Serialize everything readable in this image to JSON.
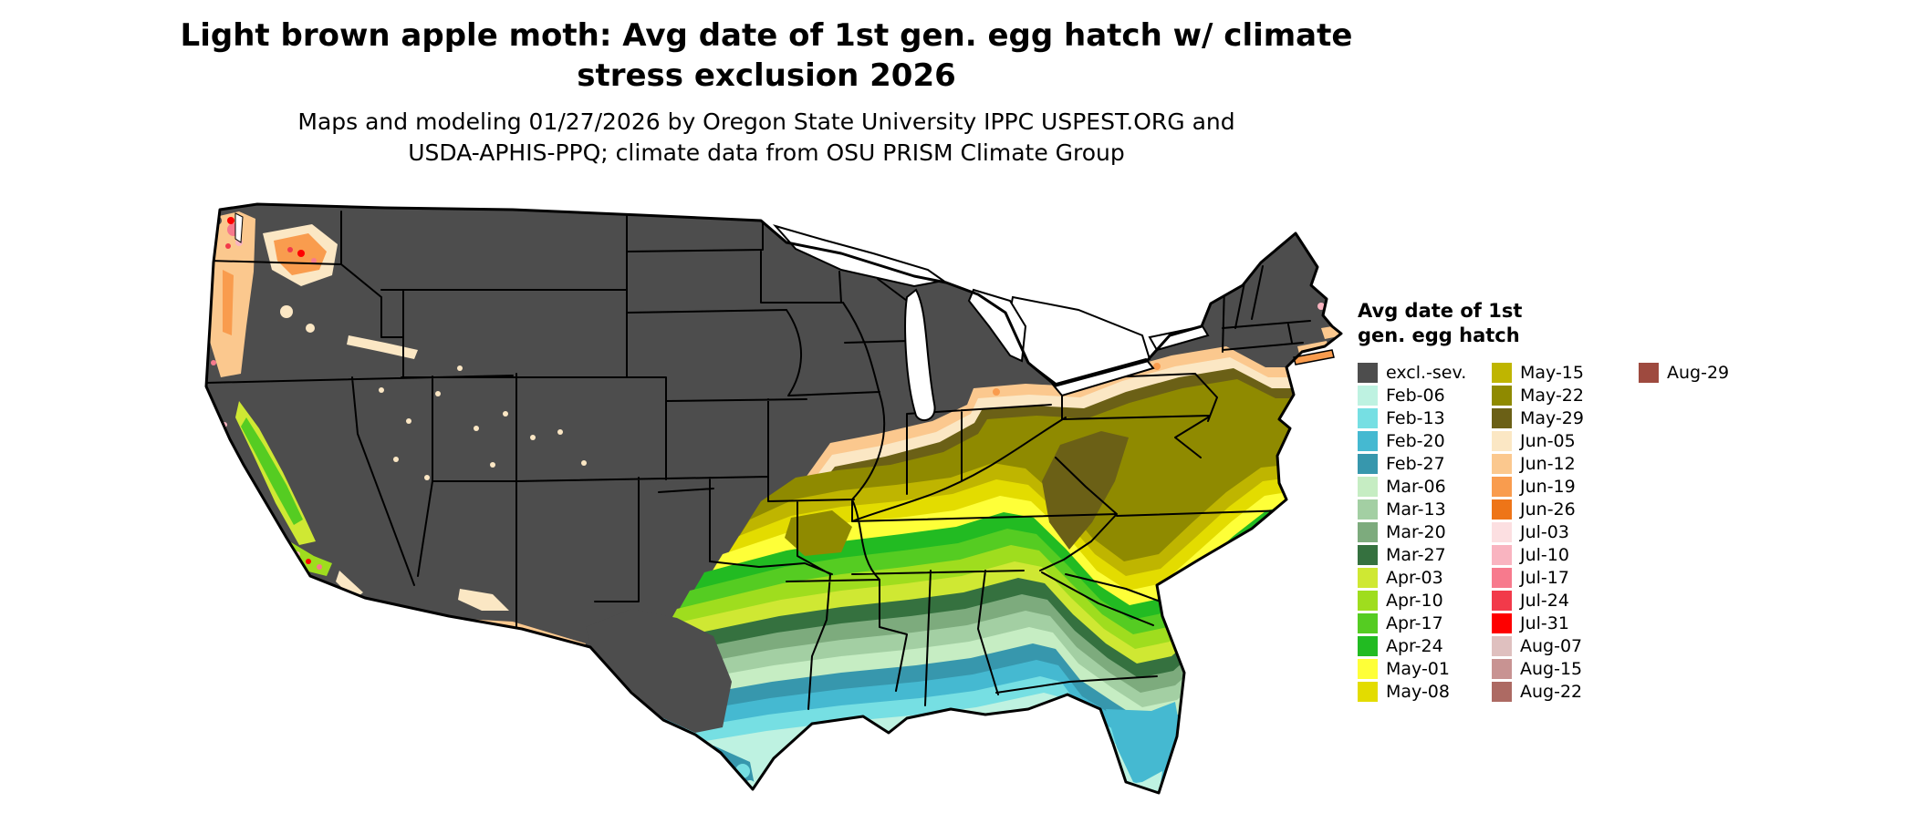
{
  "title": {
    "line1": "Light brown apple moth: Avg date of 1st gen. egg hatch w/ climate",
    "line2": "stress exclusion 2026"
  },
  "subtitle": {
    "line1": "Maps and modeling 01/27/2026 by Oregon State University IPPC USPEST.ORG and",
    "line2": "USDA-APHIS-PPQ; climate data from OSU PRISM Climate Group"
  },
  "legend": {
    "title_line1": "Avg date of 1st",
    "title_line2": "gen. egg hatch",
    "columns": [
      [
        {
          "label": "excl.-sev.",
          "color": "#4d4d4d"
        },
        {
          "label": "Feb-06",
          "color": "#bef2e1"
        },
        {
          "label": "Feb-13",
          "color": "#76dfe3"
        },
        {
          "label": "Feb-20",
          "color": "#45b9d1"
        },
        {
          "label": "Feb-27",
          "color": "#3797ad"
        },
        {
          "label": "Mar-06",
          "color": "#c6edc3"
        },
        {
          "label": "Mar-13",
          "color": "#a3cfa3"
        },
        {
          "label": "Mar-20",
          "color": "#7dab7d"
        },
        {
          "label": "Mar-27",
          "color": "#35713f"
        },
        {
          "label": "Apr-03",
          "color": "#cfe833"
        },
        {
          "label": "Apr-10",
          "color": "#9fdd1e"
        },
        {
          "label": "Apr-17",
          "color": "#55cc22"
        },
        {
          "label": "Apr-24",
          "color": "#22bb22"
        },
        {
          "label": "May-01",
          "color": "#feff38"
        },
        {
          "label": "May-08",
          "color": "#e3dc00"
        }
      ],
      [
        {
          "label": "May-15",
          "color": "#bfb500"
        },
        {
          "label": "May-22",
          "color": "#8f8a00"
        },
        {
          "label": "May-29",
          "color": "#6b6016"
        },
        {
          "label": "Jun-05",
          "color": "#fbe7c4"
        },
        {
          "label": "Jun-12",
          "color": "#fbc88e"
        },
        {
          "label": "Jun-19",
          "color": "#f99c4e"
        },
        {
          "label": "Jun-26",
          "color": "#ee7518"
        },
        {
          "label": "Jul-03",
          "color": "#fcdfe1"
        },
        {
          "label": "Jul-10",
          "color": "#f9b4c0"
        },
        {
          "label": "Jul-17",
          "color": "#f77a8d"
        },
        {
          "label": "Jul-24",
          "color": "#f23a4a"
        },
        {
          "label": "Jul-31",
          "color": "#fe0000"
        },
        {
          "label": "Aug-07",
          "color": "#dfc0bf"
        },
        {
          "label": "Aug-15",
          "color": "#c89392"
        },
        {
          "label": "Aug-22",
          "color": "#ad6a63"
        }
      ],
      [
        {
          "label": "Aug-29",
          "color": "#9e4a3f"
        }
      ]
    ]
  }
}
